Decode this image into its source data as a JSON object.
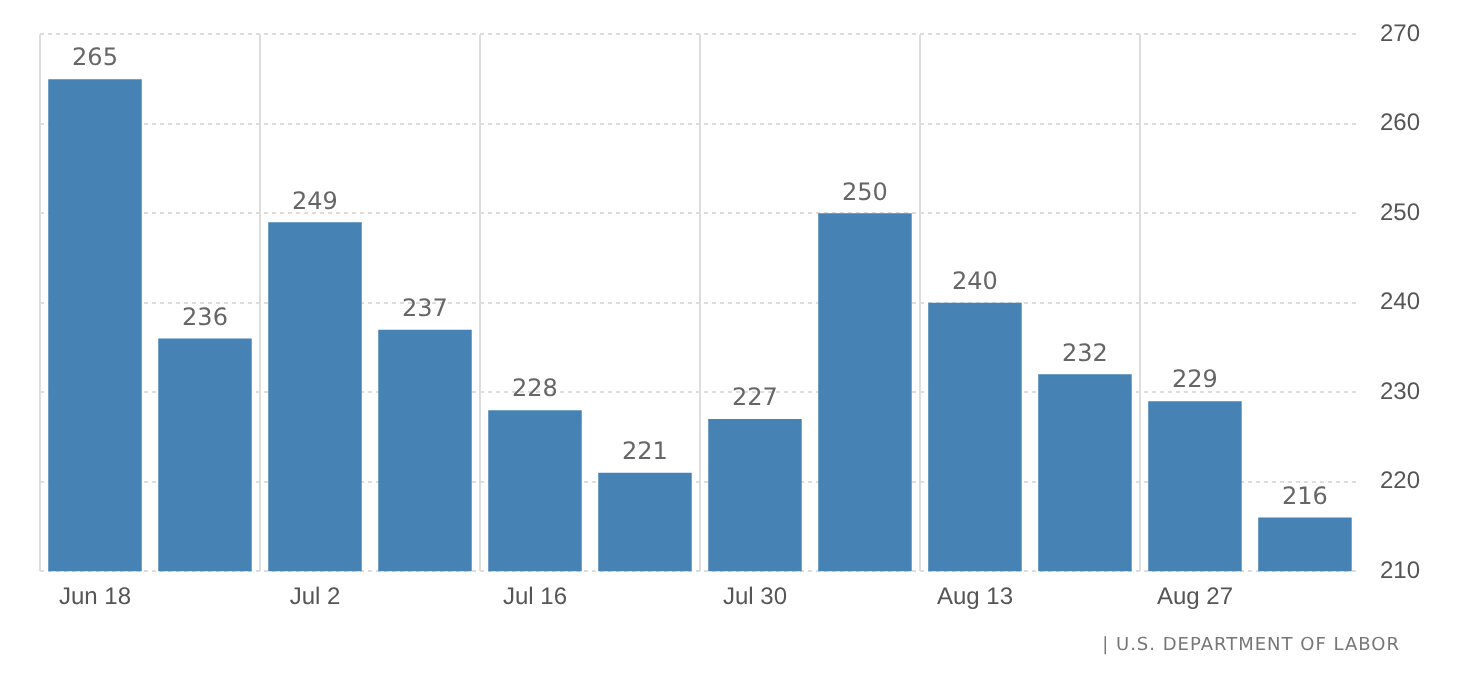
{
  "chart_data": {
    "type": "bar",
    "categories": [
      "Jun 18",
      null,
      "Jul 2",
      null,
      "Jul 16",
      null,
      "Jul 30",
      null,
      "Aug 13",
      null,
      "Aug 27",
      null
    ],
    "values": [
      265,
      236,
      249,
      237,
      228,
      221,
      227,
      250,
      240,
      232,
      229,
      216
    ],
    "color": "#4682b4",
    "ylim": [
      210,
      270
    ],
    "yticks": [
      210,
      220,
      230,
      240,
      250,
      260,
      270
    ],
    "grid": true,
    "data_labels": true,
    "annotations": [
      "| U.S. DEPARTMENT OF LABOR"
    ]
  }
}
